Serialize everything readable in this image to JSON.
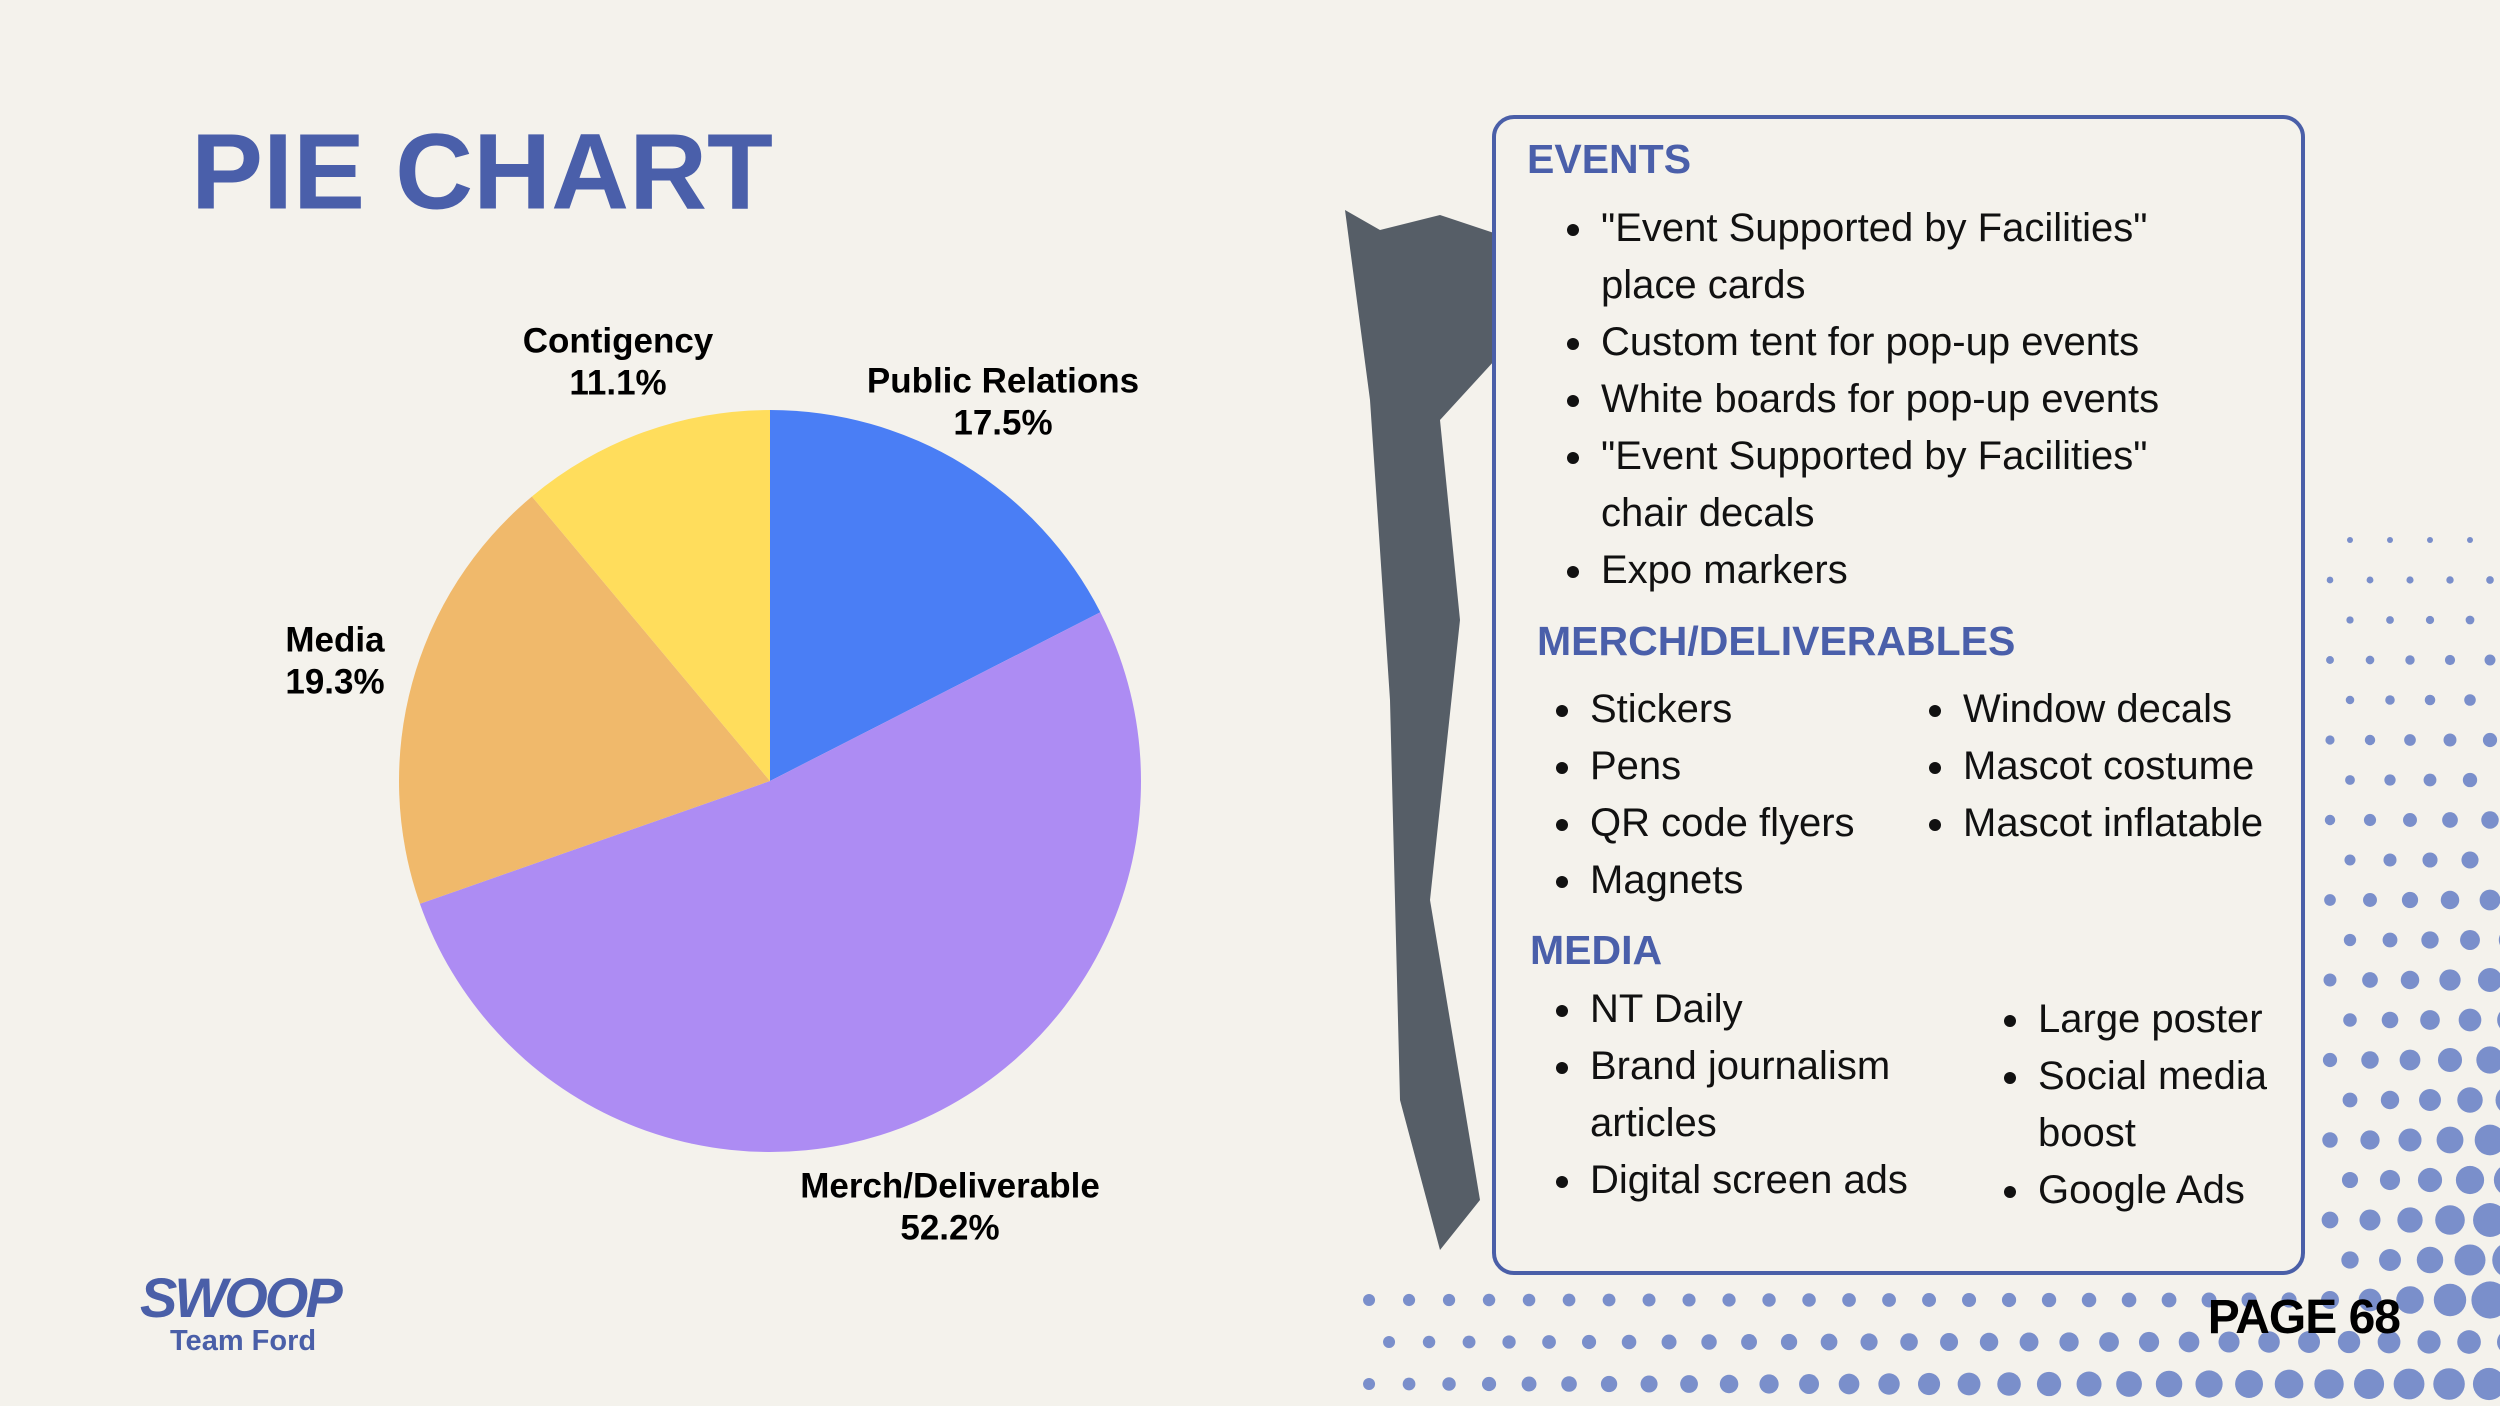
{
  "chart_data": {
    "type": "pie",
    "title": "PIE CHART",
    "categories": [
      "Public Relations",
      "Merch/Deliverable",
      "Media",
      "Contigency"
    ],
    "values": [
      17.5,
      52.2,
      19.3,
      11.1
    ],
    "value_labels": [
      "17.5%",
      "52.2%",
      "19.3%",
      "11.1%"
    ],
    "colors": [
      "#4a7ef5",
      "#ad8cf3",
      "#f0b96b",
      "#ffdd5c"
    ]
  },
  "panel": {
    "sections": [
      {
        "heading": "EVENTS",
        "columns": [
          [
            "\"Event Supported by Facilities\" place cards",
            "Custom tent for pop-up events",
            "White boards for pop-up events",
            "\"Event Supported by Facilities\" chair decals",
            "Expo markers"
          ]
        ]
      },
      {
        "heading": "MERCH/DELIVERABLES",
        "columns": [
          [
            "Stickers",
            "Pens",
            "QR code flyers",
            "Magnets"
          ],
          [
            "Window decals",
            "Mascot costume",
            "Mascot inflatable"
          ]
        ]
      },
      {
        "heading": "MEDIA",
        "columns": [
          [
            "NT Daily",
            "Brand journalism articles",
            "Digital screen ads"
          ],
          [
            "Large poster",
            "Social media boost",
            "Google Ads"
          ]
        ]
      }
    ]
  },
  "footer": {
    "logo": "SWOOP",
    "logo_subtitle": "Team Ford",
    "page": "PAGE 68"
  }
}
